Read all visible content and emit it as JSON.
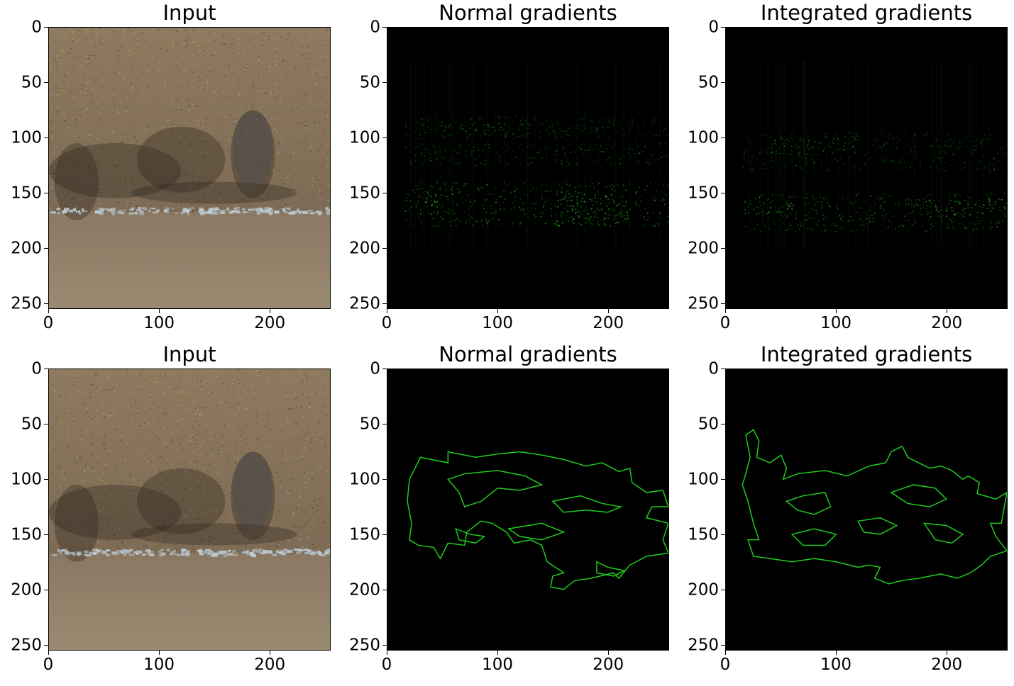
{
  "figure": {
    "rows": 2,
    "cols": 3
  },
  "colors": {
    "sand_top": "#8f7b5f",
    "sand_bottom": "#8c7a62",
    "foam": "#b7c6d0",
    "gradient_green": "#1fcc1f",
    "background": "#000000"
  },
  "chart_data": [
    {
      "type": "heatmap",
      "id": "input-top",
      "title": "Input",
      "xlim": [
        0,
        255
      ],
      "ylim": [
        255,
        0
      ],
      "xticks": [
        0,
        100,
        200
      ],
      "yticks": [
        0,
        50,
        100,
        150,
        200,
        250
      ],
      "content": "image"
    },
    {
      "type": "heatmap",
      "id": "normal-grad-top",
      "title": "Normal gradients",
      "xlim": [
        0,
        255
      ],
      "ylim": [
        255,
        0
      ],
      "xticks": [
        0,
        100,
        200
      ],
      "yticks": [
        0,
        50,
        100,
        150,
        200,
        250
      ],
      "content": "saliency",
      "hot_bands": [
        {
          "x": [
            15,
            255
          ],
          "y": [
            80,
            100
          ],
          "i": 0.35
        },
        {
          "x": [
            15,
            255
          ],
          "y": [
            105,
            125
          ],
          "i": 0.4
        },
        {
          "x": [
            15,
            255
          ],
          "y": [
            140,
            180
          ],
          "i": 0.55
        },
        {
          "x": [
            30,
            45
          ],
          "y": [
            145,
            165
          ],
          "i": 0.8
        },
        {
          "x": [
            150,
            220
          ],
          "y": [
            150,
            180
          ],
          "i": 0.75
        },
        {
          "x": [
            50,
            130
          ],
          "y": [
            85,
            100
          ],
          "i": 0.5
        }
      ]
    },
    {
      "type": "heatmap",
      "id": "integrated-grad-top",
      "title": "Integrated gradients",
      "xlim": [
        0,
        255
      ],
      "ylim": [
        255,
        0
      ],
      "xticks": [
        0,
        100,
        200
      ],
      "yticks": [
        0,
        50,
        100,
        150,
        200,
        250
      ],
      "content": "saliency",
      "hot_bands": [
        {
          "x": [
            15,
            255
          ],
          "y": [
            95,
            130
          ],
          "i": 0.35
        },
        {
          "x": [
            15,
            255
          ],
          "y": [
            150,
            185
          ],
          "i": 0.5
        },
        {
          "x": [
            160,
            255
          ],
          "y": [
            155,
            170
          ],
          "i": 0.8
        },
        {
          "x": [
            40,
            120
          ],
          "y": [
            100,
            115
          ],
          "i": 0.5
        },
        {
          "x": [
            20,
            60
          ],
          "y": [
            155,
            170
          ],
          "i": 0.6
        }
      ]
    },
    {
      "type": "heatmap",
      "id": "input-bottom",
      "title": "Input",
      "xlim": [
        0,
        255
      ],
      "ylim": [
        255,
        0
      ],
      "xticks": [
        0,
        100,
        200
      ],
      "yticks": [
        0,
        50,
        100,
        150,
        200,
        250
      ],
      "content": "image"
    },
    {
      "type": "heatmap",
      "id": "normal-grad-bottom",
      "title": "Normal gradients",
      "xlim": [
        0,
        255
      ],
      "ylim": [
        255,
        0
      ],
      "xticks": [
        0,
        100,
        200
      ],
      "yticks": [
        0,
        50,
        100,
        150,
        200,
        250
      ],
      "content": "contours",
      "contours": [
        [
          [
            30,
            80
          ],
          [
            55,
            85
          ],
          [
            55,
            75
          ],
          [
            80,
            80
          ],
          [
            100,
            77
          ],
          [
            120,
            75
          ],
          [
            140,
            78
          ],
          [
            160,
            82
          ],
          [
            180,
            88
          ],
          [
            195,
            85
          ],
          [
            210,
            93
          ],
          [
            220,
            90
          ],
          [
            222,
            103
          ],
          [
            235,
            112
          ],
          [
            250,
            110
          ],
          [
            255,
            125
          ],
          [
            240,
            125
          ],
          [
            235,
            135
          ],
          [
            255,
            140
          ],
          [
            250,
            155
          ],
          [
            255,
            167
          ],
          [
            235,
            170
          ],
          [
            220,
            178
          ],
          [
            210,
            190
          ],
          [
            205,
            185
          ],
          [
            185,
            190
          ],
          [
            170,
            192
          ],
          [
            160,
            200
          ],
          [
            148,
            198
          ],
          [
            150,
            188
          ],
          [
            160,
            185
          ],
          [
            145,
            175
          ],
          [
            140,
            160
          ],
          [
            130,
            155
          ],
          [
            115,
            158
          ],
          [
            108,
            148
          ],
          [
            95,
            140
          ],
          [
            85,
            138
          ],
          [
            72,
            148
          ],
          [
            70,
            160
          ],
          [
            55,
            158
          ],
          [
            48,
            172
          ],
          [
            42,
            162
          ],
          [
            28,
            160
          ],
          [
            20,
            155
          ],
          [
            22,
            140
          ],
          [
            18,
            120
          ],
          [
            20,
            100
          ],
          [
            25,
            90
          ],
          [
            30,
            80
          ]
        ],
        [
          [
            55,
            100
          ],
          [
            70,
            95
          ],
          [
            100,
            92
          ],
          [
            125,
            97
          ],
          [
            140,
            105
          ],
          [
            120,
            110
          ],
          [
            100,
            108
          ],
          [
            85,
            120
          ],
          [
            70,
            125
          ],
          [
            65,
            112
          ],
          [
            55,
            100
          ]
        ],
        [
          [
            150,
            120
          ],
          [
            175,
            115
          ],
          [
            195,
            122
          ],
          [
            212,
            125
          ],
          [
            200,
            130
          ],
          [
            180,
            128
          ],
          [
            160,
            130
          ],
          [
            150,
            120
          ]
        ],
        [
          [
            110,
            145
          ],
          [
            140,
            140
          ],
          [
            160,
            148
          ],
          [
            140,
            155
          ],
          [
            120,
            152
          ],
          [
            110,
            145
          ]
        ],
        [
          [
            62,
            145
          ],
          [
            75,
            150
          ],
          [
            88,
            152
          ],
          [
            80,
            158
          ],
          [
            65,
            155
          ],
          [
            62,
            145
          ]
        ],
        [
          [
            190,
            175
          ],
          [
            200,
            180
          ],
          [
            215,
            183
          ],
          [
            205,
            188
          ],
          [
            190,
            185
          ],
          [
            190,
            175
          ]
        ]
      ]
    },
    {
      "type": "heatmap",
      "id": "integrated-grad-bottom",
      "title": "Integrated gradients",
      "xlim": [
        0,
        255
      ],
      "ylim": [
        255,
        0
      ],
      "xticks": [
        0,
        100,
        200
      ],
      "yticks": [
        0,
        50,
        100,
        150,
        200,
        250
      ],
      "content": "contours",
      "contours": [
        [
          [
            18,
            60
          ],
          [
            25,
            55
          ],
          [
            30,
            65
          ],
          [
            28,
            80
          ],
          [
            40,
            85
          ],
          [
            50,
            78
          ],
          [
            55,
            90
          ],
          [
            52,
            100
          ],
          [
            65,
            95
          ],
          [
            90,
            92
          ],
          [
            110,
            97
          ],
          [
            130,
            88
          ],
          [
            145,
            85
          ],
          [
            150,
            75
          ],
          [
            160,
            70
          ],
          [
            165,
            80
          ],
          [
            175,
            85
          ],
          [
            185,
            90
          ],
          [
            195,
            88
          ],
          [
            205,
            92
          ],
          [
            215,
            100
          ],
          [
            220,
            97
          ],
          [
            230,
            103
          ],
          [
            228,
            113
          ],
          [
            245,
            118
          ],
          [
            255,
            112
          ],
          [
            250,
            140
          ],
          [
            240,
            140
          ],
          [
            245,
            152
          ],
          [
            255,
            165
          ],
          [
            240,
            170
          ],
          [
            232,
            178
          ],
          [
            222,
            185
          ],
          [
            210,
            190
          ],
          [
            195,
            186
          ],
          [
            175,
            190
          ],
          [
            160,
            192
          ],
          [
            148,
            195
          ],
          [
            135,
            190
          ],
          [
            140,
            180
          ],
          [
            130,
            178
          ],
          [
            120,
            180
          ],
          [
            100,
            175
          ],
          [
            80,
            172
          ],
          [
            60,
            175
          ],
          [
            40,
            172
          ],
          [
            25,
            170
          ],
          [
            20,
            155
          ],
          [
            30,
            155
          ],
          [
            25,
            140
          ],
          [
            20,
            120
          ],
          [
            15,
            105
          ],
          [
            18,
            95
          ],
          [
            22,
            80
          ],
          [
            18,
            60
          ]
        ],
        [
          [
            55,
            120
          ],
          [
            70,
            115
          ],
          [
            90,
            112
          ],
          [
            95,
            125
          ],
          [
            80,
            132
          ],
          [
            65,
            128
          ],
          [
            55,
            120
          ]
        ],
        [
          [
            120,
            138
          ],
          [
            140,
            135
          ],
          [
            155,
            142
          ],
          [
            140,
            150
          ],
          [
            125,
            148
          ],
          [
            120,
            138
          ]
        ],
        [
          [
            150,
            112
          ],
          [
            170,
            105
          ],
          [
            190,
            108
          ],
          [
            200,
            118
          ],
          [
            185,
            125
          ],
          [
            165,
            122
          ],
          [
            150,
            112
          ]
        ],
        [
          [
            60,
            150
          ],
          [
            80,
            145
          ],
          [
            100,
            150
          ],
          [
            90,
            160
          ],
          [
            70,
            160
          ],
          [
            60,
            150
          ]
        ],
        [
          [
            180,
            140
          ],
          [
            200,
            142
          ],
          [
            215,
            150
          ],
          [
            205,
            158
          ],
          [
            190,
            155
          ],
          [
            180,
            140
          ]
        ]
      ]
    }
  ]
}
